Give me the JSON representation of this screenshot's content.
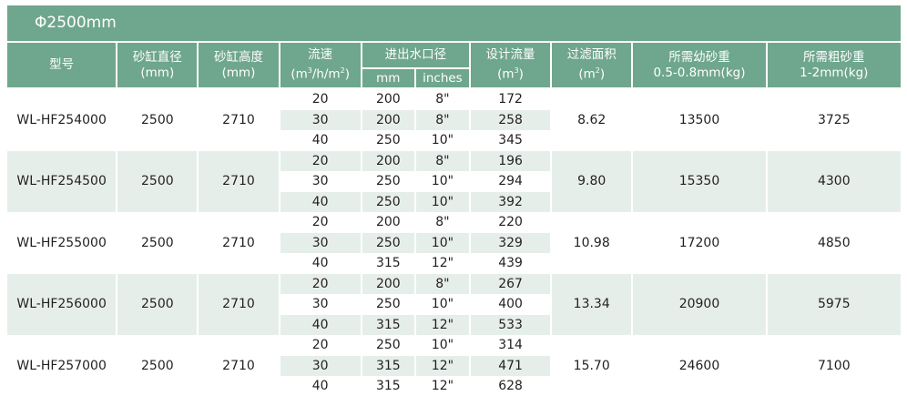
{
  "title": "Φ2500mm",
  "colors": {
    "header": "#6fa68e",
    "shade": "#e6eeea"
  },
  "headers": {
    "model": "型号",
    "diameter": "砂缸直径",
    "diameter_unit": "(mm)",
    "height": "砂缸高度",
    "height_unit": "(mm)",
    "velocity": "流速",
    "velocity_unit_a": "(m",
    "velocity_unit_b": "/h/m",
    "velocity_unit_c": ")",
    "port": "进出水口径",
    "port_mm": "mm",
    "port_inches": "inches",
    "flow": "设计流量",
    "flow_unit_a": "(m",
    "flow_unit_b": ")",
    "area": "过滤面积",
    "area_unit_a": "(m",
    "area_unit_b": ")",
    "fine_sand": "所需幼砂重",
    "fine_sand_unit": "0.5-0.8mm(kg)",
    "coarse_sand": "所需粗砂重",
    "coarse_sand_unit": "1-2mm(kg)",
    "sup3": "3",
    "sup2": "2"
  },
  "groups": [
    {
      "model": "WL-HF254000",
      "diameter": "2500",
      "height": "2710",
      "area": "8.62",
      "fine": "13500",
      "coarse": "3725",
      "rows": [
        {
          "v": "20",
          "mm": "200",
          "in": "8\"",
          "flow": "172"
        },
        {
          "v": "30",
          "mm": "200",
          "in": "8\"",
          "flow": "258"
        },
        {
          "v": "40",
          "mm": "250",
          "in": "10\"",
          "flow": "345"
        }
      ]
    },
    {
      "model": "WL-HF254500",
      "diameter": "2500",
      "height": "2710",
      "area": "9.80",
      "fine": "15350",
      "coarse": "4300",
      "rows": [
        {
          "v": "20",
          "mm": "200",
          "in": "8\"",
          "flow": "196"
        },
        {
          "v": "30",
          "mm": "250",
          "in": "10\"",
          "flow": "294"
        },
        {
          "v": "40",
          "mm": "250",
          "in": "10\"",
          "flow": "392"
        }
      ]
    },
    {
      "model": "WL-HF255000",
      "diameter": "2500",
      "height": "2710",
      "area": "10.98",
      "fine": "17200",
      "coarse": "4850",
      "rows": [
        {
          "v": "20",
          "mm": "200",
          "in": "8\"",
          "flow": "220"
        },
        {
          "v": "30",
          "mm": "250",
          "in": "10\"",
          "flow": "329"
        },
        {
          "v": "40",
          "mm": "315",
          "in": "12\"",
          "flow": "439"
        }
      ]
    },
    {
      "model": "WL-HF256000",
      "diameter": "2500",
      "height": "2710",
      "area": "13.34",
      "fine": "20900",
      "coarse": "5975",
      "rows": [
        {
          "v": "20",
          "mm": "200",
          "in": "8\"",
          "flow": "267"
        },
        {
          "v": "30",
          "mm": "250",
          "in": "10\"",
          "flow": "400"
        },
        {
          "v": "40",
          "mm": "315",
          "in": "12\"",
          "flow": "533"
        }
      ]
    },
    {
      "model": "WL-HF257000",
      "diameter": "2500",
      "height": "2710",
      "area": "15.70",
      "fine": "24600",
      "coarse": "7100",
      "rows": [
        {
          "v": "20",
          "mm": "250",
          "in": "10\"",
          "flow": "314"
        },
        {
          "v": "30",
          "mm": "315",
          "in": "12\"",
          "flow": "471"
        },
        {
          "v": "40",
          "mm": "315",
          "in": "12\"",
          "flow": "628"
        }
      ]
    }
  ]
}
